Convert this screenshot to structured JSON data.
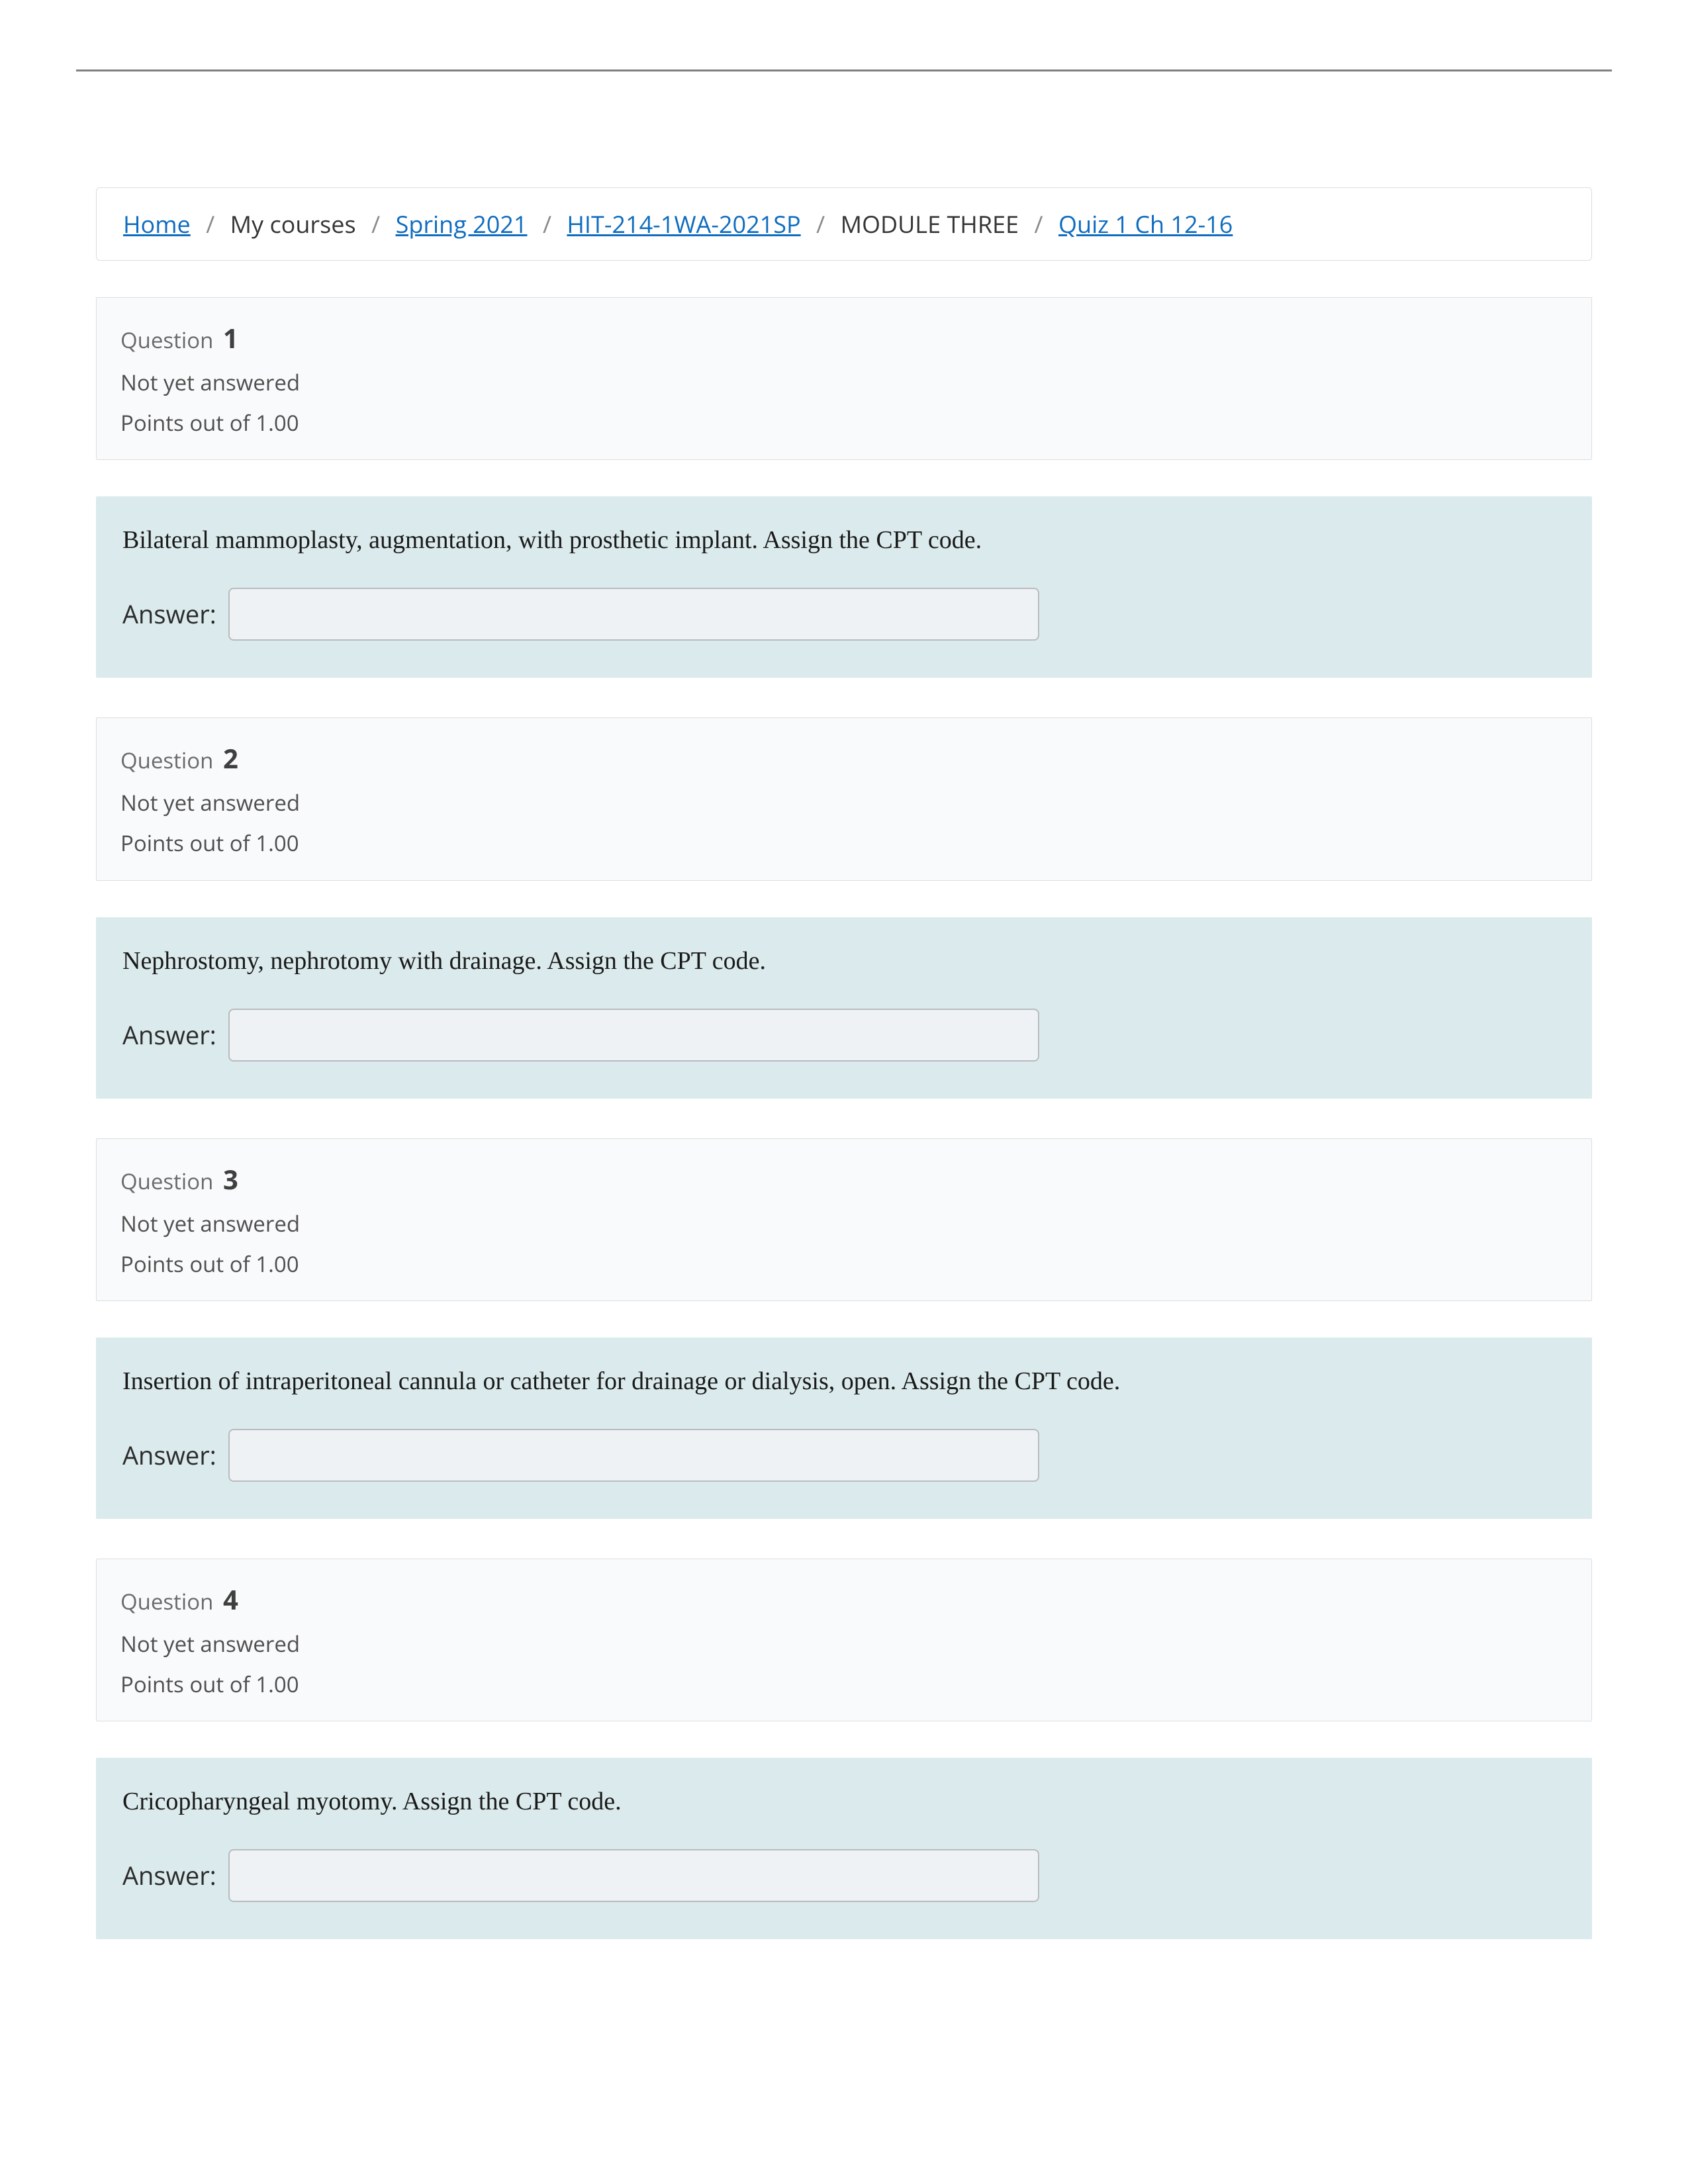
{
  "colors": {
    "link": "#0f6cbf",
    "box_border": "#dddddd",
    "header_bg": "#f9fafb",
    "body_bg": "#dbeaec",
    "input_border": "#b8bcc0",
    "input_bg": "#eef2f4",
    "rule": "#808080"
  },
  "breadcrumb": {
    "items": [
      {
        "label": "Home",
        "link": true
      },
      {
        "label": "My courses",
        "link": false
      },
      {
        "label": "Spring 2021",
        "link": true
      },
      {
        "label": "HIT-214-1WA-2021SP",
        "link": true
      },
      {
        "label": "MODULE THREE",
        "link": false
      },
      {
        "label": "Quiz 1 Ch 12-16",
        "link": true
      }
    ],
    "separator": "/"
  },
  "labels": {
    "question_word": "Question",
    "not_answered": "Not yet answered",
    "points_prefix": "Points out of",
    "answer_label": "Answer:"
  },
  "questions": [
    {
      "number": "1",
      "points": "1.00",
      "prompt": "Bilateral mammoplasty, augmentation, with prosthetic implant. Assign the CPT code.",
      "value": ""
    },
    {
      "number": "2",
      "points": "1.00",
      "prompt": "Nephrostomy, nephrotomy with drainage. Assign the CPT code.",
      "value": ""
    },
    {
      "number": "3",
      "points": "1.00",
      "prompt": "Insertion of intraperitoneal cannula or catheter for drainage or dialysis, open. Assign the CPT code.",
      "value": ""
    },
    {
      "number": "4",
      "points": "1.00",
      "prompt": "Cricopharyngeal myotomy. Assign the CPT code.",
      "value": ""
    }
  ]
}
